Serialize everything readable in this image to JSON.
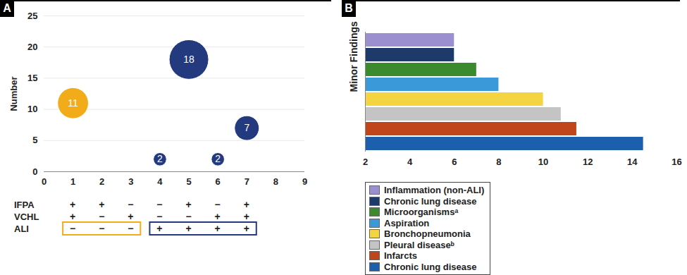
{
  "chart_data": [
    {
      "type": "scatter",
      "panel_label": "A",
      "y_label": "Number",
      "x": [
        1,
        4,
        5,
        6,
        7
      ],
      "values": [
        11,
        2,
        18,
        2,
        7
      ],
      "sizes": [
        11,
        2,
        18,
        2,
        7
      ],
      "colors": [
        "#f2ac1a",
        "#233a7e",
        "#233a7e",
        "#233a7e",
        "#233a7e"
      ],
      "data_labels": true,
      "xlim": [
        0,
        9
      ],
      "xticks": [
        0,
        1,
        2,
        3,
        4,
        5,
        6,
        7,
        8,
        9
      ],
      "ylim": [
        0,
        25
      ],
      "yticks": [
        0,
        5,
        10,
        15,
        20,
        25
      ],
      "grid": true,
      "indicator_table": {
        "columns": [
          1,
          2,
          3,
          4,
          5,
          6,
          7
        ],
        "rows": [
          {
            "label": "IFPA",
            "marks": [
              "+",
              "+",
              "−",
              "−",
              "+",
              "−",
              "+"
            ]
          },
          {
            "label": "VCHL",
            "marks": [
              "+",
              "−",
              "+",
              "−",
              "−",
              "+",
              "+"
            ]
          },
          {
            "label": "ALI",
            "marks": [
              "−",
              "−",
              "−",
              "+",
              "+",
              "+",
              "+"
            ]
          }
        ],
        "groups": [
          {
            "row": "ALI",
            "from": 1,
            "to": 3,
            "color": "#f2ac1a"
          },
          {
            "row": "ALI",
            "from": 4,
            "to": 7,
            "color": "#233a7e"
          }
        ]
      }
    },
    {
      "type": "bar",
      "panel_label": "B",
      "orientation": "horizontal",
      "y_label": "Minor Findings",
      "categories": [
        "Inflammation (non-ALI)",
        "Chronic lung disease",
        "Microorganismsᵃ",
        "Aspiration",
        "Bronchopneumonia",
        "Pleural diseaseᵇ",
        "Infarcts",
        "Chronic lung disease"
      ],
      "values": [
        6,
        6,
        7,
        8,
        10,
        10.8,
        11.5,
        14.5
      ],
      "colors": [
        "#9b8fd0",
        "#1d3a6b",
        "#3c8a2e",
        "#3a9ad9",
        "#f5d442",
        "#c4c4c4",
        "#c0451b",
        "#1c5fad"
      ],
      "xlim": [
        2,
        16
      ],
      "xticks": [
        2,
        4,
        6,
        8,
        10,
        12,
        14,
        16
      ],
      "tick_labels": "x",
      "legend": "bottom"
    }
  ]
}
